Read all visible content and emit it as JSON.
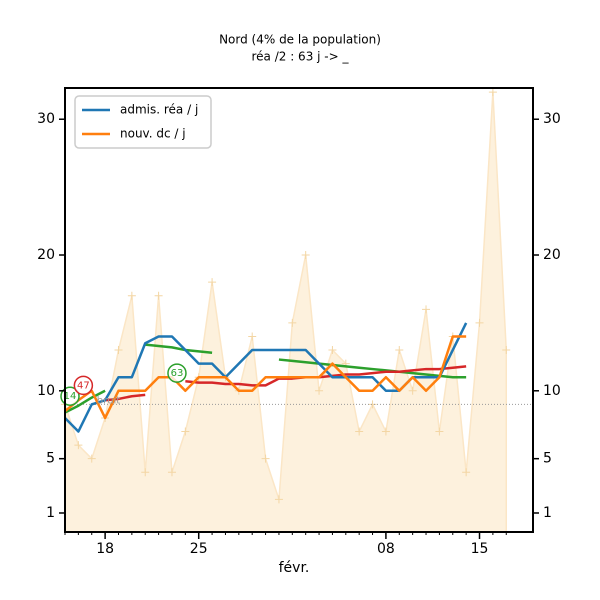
{
  "chart_data": {
    "type": "line",
    "title": "Nord (4% de la population)",
    "subtitle": "réa /2 : 63 j -> _",
    "xlabel": "févr.",
    "x": [
      "01-15",
      "01-16",
      "01-17",
      "01-18",
      "01-19",
      "01-20",
      "01-21",
      "01-22",
      "01-23",
      "01-24",
      "01-25",
      "01-26",
      "01-27",
      "01-28",
      "01-29",
      "01-30",
      "01-31",
      "02-01",
      "02-02",
      "02-03",
      "02-04",
      "02-05",
      "02-06",
      "02-07",
      "02-08",
      "02-09",
      "02-10",
      "02-11",
      "02-12",
      "02-13",
      "02-14",
      "02-15",
      "02-16",
      "02-17"
    ],
    "xlim": [
      "01-15",
      "02-19"
    ],
    "xticks": [
      {
        "value": "01-18",
        "label": "18"
      },
      {
        "value": "01-25",
        "label": "25"
      },
      {
        "value": "02-08",
        "label": "08"
      },
      {
        "value": "02-15",
        "label": "15"
      }
    ],
    "ylim": [
      -0.4,
      32.3
    ],
    "yticks": [
      1,
      5,
      10,
      20,
      30
    ],
    "raw": {
      "color": "#fdf1dd",
      "marker_color": "#f3d6a4",
      "values": [
        9,
        6,
        5,
        8,
        13,
        17,
        4,
        17,
        4,
        7,
        11,
        18,
        11,
        10,
        14,
        5,
        2,
        15,
        20,
        10,
        13,
        12,
        7,
        9,
        7,
        13,
        10,
        16,
        7,
        14,
        4,
        15,
        32,
        13
      ]
    },
    "series": [
      {
        "name": "admis. réa / j",
        "color": "#1f77b4",
        "values": [
          8,
          7,
          9,
          9.3,
          11,
          11,
          13.5,
          14,
          14,
          13,
          12,
          12,
          11,
          12,
          13,
          13,
          13,
          13,
          13,
          12,
          11,
          11,
          11,
          11,
          10,
          10,
          11,
          11,
          11,
          13,
          15,
          null,
          null,
          null
        ]
      },
      {
        "name": "nouv. dc / j",
        "color": "#ff7f0e",
        "values": [
          8.5,
          9.3,
          10,
          8,
          10,
          10,
          10,
          11,
          11,
          10,
          11,
          11,
          11,
          10,
          10,
          11,
          11,
          11,
          11,
          11,
          12,
          11,
          10,
          10,
          11,
          10,
          11,
          10,
          11,
          14,
          14,
          null,
          null,
          null
        ]
      }
    ],
    "trends": [
      {
        "color": "#2ca02c",
        "values": [
          8.4,
          8.9,
          9.5,
          10,
          null,
          null,
          13.4,
          13.3,
          13.2,
          13.0,
          12.9,
          12.8,
          null,
          null,
          null,
          null,
          12.3,
          12.2,
          12.1,
          12.0,
          11.9,
          11.8,
          11.7,
          11.6,
          11.5,
          11.4,
          11.3,
          11.2,
          11.1,
          11.0,
          11.0,
          null,
          null,
          null
        ]
      },
      {
        "color": "#d62728",
        "values": [
          null,
          null,
          null,
          9.3,
          9.4,
          9.6,
          9.7,
          null,
          null,
          10.7,
          10.6,
          10.6,
          10.5,
          10.5,
          10.4,
          10.4,
          10.9,
          10.9,
          11.0,
          11.0,
          11.1,
          11.2,
          11.2,
          11.3,
          11.4,
          11.4,
          11.5,
          11.6,
          11.6,
          11.7,
          11.8,
          null,
          null,
          null
        ]
      }
    ],
    "reference_line": 9,
    "annotations": [
      {
        "text": "14",
        "x": "01-15",
        "y": 9.6,
        "color": "#2ca02c"
      },
      {
        "text": "47",
        "x": "01-16",
        "y": 10.4,
        "color": "#d62728"
      },
      {
        "text": "bruit",
        "x": "01-17",
        "y": 9.3,
        "color": "#999999"
      },
      {
        "text": "63",
        "x": "01-23",
        "y": 11.3,
        "color": "#2ca02c"
      }
    ],
    "legend": "upper left",
    "grid": false
  }
}
